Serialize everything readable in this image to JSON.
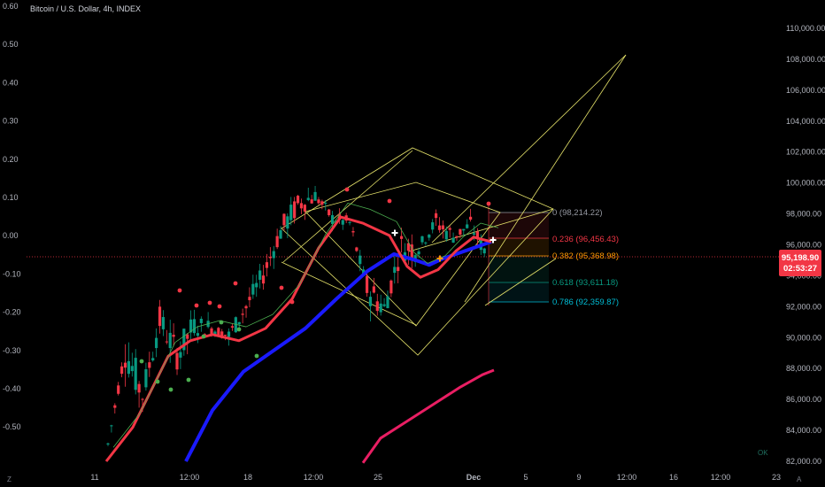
{
  "header": {
    "title": "Bitcoin / U.S. Dollar, 4h, INDEX"
  },
  "left_axis": {
    "ticks": [
      "0.60",
      "0.50",
      "0.40",
      "0.30",
      "0.20",
      "0.10",
      "0.00",
      "-0.10",
      "-0.20",
      "-0.30",
      "-0.40",
      "-0.50"
    ]
  },
  "right_axis": {
    "ticks": [
      "110,000.00",
      "108,000.00",
      "106,000.00",
      "104,000.00",
      "102,000.00",
      "100,000.00",
      "98,000.00",
      "96,000.00",
      "94,000.00",
      "92,000.00",
      "90,000.00",
      "88,000.00",
      "86,000.00",
      "84,000.00",
      "82,000.00"
    ]
  },
  "time_axis": {
    "ticks": [
      "11",
      "12:00",
      "18",
      "12:00",
      "25",
      "Dec",
      "5",
      "9",
      "12:00",
      "16",
      "12:00",
      "23"
    ]
  },
  "fib_levels": [
    {
      "ratio": "0",
      "price": "98,214.22",
      "label": "0 (98,214.22)",
      "color": "#9598a1"
    },
    {
      "ratio": "0.236",
      "price": "96,456.43",
      "label": "0.236 (96,456.43)",
      "color": "#f23645"
    },
    {
      "ratio": "0.382",
      "price": "95,368.98",
      "label": "0.382 (95,368.98)",
      "color": "#ff9800"
    },
    {
      "ratio": "0.618",
      "price": "93,611.18",
      "label": "0.618 (93,611.18)",
      "color": "#089981"
    },
    {
      "ratio": "0.786",
      "price": "92,359.87",
      "label": "0.786 (92,359.87)",
      "color": "#00bcd4"
    }
  ],
  "price_tag": {
    "price": "95,198.90",
    "countdown": "02:53:27",
    "color": "#f23645"
  },
  "corner_left": "Z",
  "corner_right": "A",
  "colors": {
    "background": "#000000",
    "up": "#089981",
    "down": "#f23645",
    "channel": "#e6e36a",
    "ema_fast": "#f23645",
    "ema_mid": "#1a1aff",
    "ema_slow": "#e91e63"
  },
  "chart_data": {
    "type": "candlestick",
    "symbol": "Bitcoin / U.S. Dollar",
    "interval": "4h",
    "y_range": [
      82000,
      110000
    ],
    "secondary_y_range": [
      -0.5,
      0.6
    ],
    "current_price": 95198.9,
    "ohlc_approx": [
      {
        "t": "Nov 11",
        "o": 82400,
        "h": 83400,
        "l": 81600,
        "c": 83100
      },
      {
        "t": "Nov 12",
        "o": 84200,
        "h": 89800,
        "l": 83400,
        "c": 89200
      },
      {
        "t": "Nov 12 12:00",
        "o": 88700,
        "h": 89900,
        "l": 85600,
        "c": 86300
      },
      {
        "t": "Nov 13",
        "o": 87200,
        "h": 91600,
        "l": 86800,
        "c": 91100
      },
      {
        "t": "Nov 14",
        "o": 90500,
        "h": 91900,
        "l": 87000,
        "c": 88900
      },
      {
        "t": "Nov 15",
        "o": 89300,
        "h": 91000,
        "l": 88000,
        "c": 90800
      },
      {
        "t": "Nov 16",
        "o": 90200,
        "h": 91100,
        "l": 89700,
        "c": 90600
      },
      {
        "t": "Nov 17",
        "o": 90400,
        "h": 92100,
        "l": 89500,
        "c": 90100
      },
      {
        "t": "Nov 18",
        "o": 90200,
        "h": 92800,
        "l": 89800,
        "c": 92000
      },
      {
        "t": "Nov 19",
        "o": 92200,
        "h": 94700,
        "l": 91500,
        "c": 94100
      },
      {
        "t": "Nov 20",
        "o": 94400,
        "h": 97600,
        "l": 93700,
        "c": 96900
      },
      {
        "t": "Nov 21",
        "o": 97100,
        "h": 99300,
        "l": 96000,
        "c": 98600
      },
      {
        "t": "Nov 22",
        "o": 98500,
        "h": 99700,
        "l": 97900,
        "c": 99200
      },
      {
        "t": "Nov 23",
        "o": 98800,
        "h": 99000,
        "l": 97100,
        "c": 97700
      },
      {
        "t": "Nov 24",
        "o": 97800,
        "h": 98200,
        "l": 96200,
        "c": 97400
      },
      {
        "t": "Nov 25",
        "o": 97500,
        "h": 97700,
        "l": 92800,
        "c": 93200
      },
      {
        "t": "Nov 26",
        "o": 93100,
        "h": 94600,
        "l": 90900,
        "c": 91900
      },
      {
        "t": "Nov 27",
        "o": 92000,
        "h": 96100,
        "l": 91500,
        "c": 95900
      },
      {
        "t": "Nov 28",
        "o": 95700,
        "h": 96500,
        "l": 94700,
        "c": 95800
      },
      {
        "t": "Nov 29",
        "o": 95800,
        "h": 98400,
        "l": 95300,
        "c": 97500
      },
      {
        "t": "Nov 30",
        "o": 97400,
        "h": 98000,
        "l": 96300,
        "c": 96500
      },
      {
        "t": "Dec 1",
        "o": 96400,
        "h": 98200,
        "l": 95900,
        "c": 97300
      },
      {
        "t": "Dec 2",
        "o": 97300,
        "h": 97500,
        "l": 94500,
        "c": 95200
      }
    ],
    "ema_fast": [
      [
        120,
        82000
      ],
      [
        150,
        84200
      ],
      [
        190,
        88800
      ],
      [
        215,
        89800
      ],
      [
        240,
        90200
      ],
      [
        270,
        89800
      ],
      [
        300,
        90600
      ],
      [
        330,
        92500
      ],
      [
        360,
        95800
      ],
      [
        385,
        97800
      ],
      [
        410,
        97400
      ],
      [
        440,
        96600
      ],
      [
        460,
        94600
      ],
      [
        475,
        93900
      ],
      [
        495,
        94400
      ],
      [
        515,
        95600
      ],
      [
        535,
        96500
      ],
      [
        555,
        96200
      ]
    ],
    "ema_mid": [
      [
        210,
        82000
      ],
      [
        240,
        85300
      ],
      [
        275,
        87800
      ],
      [
        310,
        89200
      ],
      [
        345,
        90600
      ],
      [
        380,
        92500
      ],
      [
        415,
        94300
      ],
      [
        445,
        95400
      ],
      [
        470,
        95000
      ],
      [
        485,
        94700
      ],
      [
        500,
        95100
      ],
      [
        520,
        95500
      ],
      [
        540,
        95900
      ],
      [
        555,
        96200
      ]
    ],
    "ema_slow": [
      [
        410,
        81900
      ],
      [
        430,
        83500
      ],
      [
        460,
        84600
      ],
      [
        490,
        85700
      ],
      [
        520,
        86800
      ],
      [
        545,
        87600
      ],
      [
        558,
        87900
      ]
    ]
  }
}
